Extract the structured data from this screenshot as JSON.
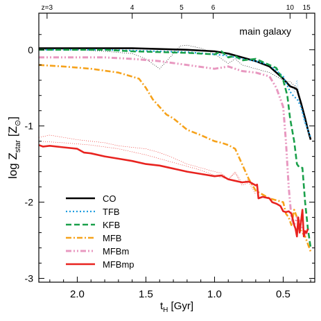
{
  "chart_data": {
    "type": "line",
    "annotation": "main galaxy",
    "xlabel": "t",
    "xlabel_sub": "H",
    "xlabel_unit": " [Gyr]",
    "ylabel": "log Z",
    "ylabel_sub": "star",
    "ylabel_unit_open": " [Z",
    "ylabel_unit_sub": "⊙",
    "ylabel_unit_close": "]",
    "x_reversed": true,
    "xlim": [
      2.28,
      0.27
    ],
    "ylim": [
      -3.05,
      0.48
    ],
    "x_ticks": [
      {
        "v": 2.0,
        "label": "2.0"
      },
      {
        "v": 1.5,
        "label": "1.5"
      },
      {
        "v": 1.0,
        "label": "1.0"
      },
      {
        "v": 0.5,
        "label": "0.5"
      }
    ],
    "y_ticks": [
      {
        "v": 0,
        "label": "0"
      },
      {
        "v": -1,
        "label": "-1"
      },
      {
        "v": -2,
        "label": "-2"
      },
      {
        "v": -3,
        "label": "-3"
      }
    ],
    "top_axis_ticks": [
      {
        "x": 2.22,
        "label": "z=3"
      },
      {
        "x": 1.6,
        "label": "4"
      },
      {
        "x": 1.24,
        "label": "5"
      },
      {
        "x": 1.01,
        "label": "6"
      },
      {
        "x": 0.45,
        "label": "10"
      },
      {
        "x": 0.33,
        "label": "15"
      }
    ],
    "legend_position": "bottom-left",
    "series": [
      {
        "name": "CO",
        "color": "#000000",
        "dash": "solid",
        "width": 2.6,
        "x": [
          2.28,
          2.0,
          1.8,
          1.6,
          1.4,
          1.2,
          1.0,
          0.9,
          0.8,
          0.7,
          0.6,
          0.55,
          0.5,
          0.45,
          0.42,
          0.4,
          0.37,
          0.34,
          0.32,
          0.3
        ],
        "y": [
          0.02,
          0.02,
          0.02,
          0.02,
          0.01,
          0.0,
          -0.02,
          -0.05,
          -0.1,
          -0.15,
          -0.22,
          -0.3,
          -0.38,
          -0.48,
          -0.5,
          -0.52,
          -0.7,
          -0.9,
          -1.05,
          -1.18
        ]
      },
      {
        "name": "TFB",
        "color": "#1e9de0",
        "dash": "dotted",
        "width": 2.2,
        "x": [
          2.28,
          2.0,
          1.8,
          1.6,
          1.4,
          1.2,
          1.0,
          0.9,
          0.8,
          0.7,
          0.6,
          0.5,
          0.45,
          0.42,
          0.4,
          0.37,
          0.34,
          0.32,
          0.3
        ],
        "y": [
          0.0,
          0.0,
          0.0,
          -0.01,
          -0.02,
          -0.03,
          -0.06,
          -0.08,
          -0.12,
          -0.15,
          -0.2,
          -0.35,
          -0.55,
          -0.62,
          -0.64,
          -0.75,
          -0.95,
          -1.05,
          -1.15
        ]
      },
      {
        "name": "KFB",
        "color": "#1aa04a",
        "dash": "dashed",
        "width": 2.6,
        "x": [
          2.28,
          2.0,
          1.8,
          1.6,
          1.4,
          1.2,
          1.0,
          0.95,
          0.9,
          0.85,
          0.8,
          0.7,
          0.6,
          0.55,
          0.5,
          0.47,
          0.45,
          0.42,
          0.4,
          0.38,
          0.36,
          0.34,
          0.32,
          0.3
        ],
        "y": [
          0.0,
          0.0,
          0.0,
          -0.02,
          -0.03,
          -0.04,
          -0.06,
          -0.02,
          -0.1,
          -0.08,
          -0.14,
          -0.12,
          -0.2,
          -0.24,
          -0.4,
          -0.6,
          -0.9,
          -1.2,
          -1.5,
          -1.55,
          -1.55,
          -2.0,
          -2.35,
          -2.6
        ]
      },
      {
        "name": "MFB",
        "color": "#f6a21b",
        "dash": "dashdot",
        "width": 2.6,
        "x": [
          2.28,
          2.1,
          1.9,
          1.7,
          1.55,
          1.5,
          1.45,
          1.4,
          1.35,
          1.3,
          1.2,
          1.1,
          1.0,
          0.95,
          0.9,
          0.85,
          0.8,
          0.75,
          0.7,
          0.6,
          0.5,
          0.48,
          0.46,
          0.44,
          0.42,
          0.4,
          0.38,
          0.36,
          0.34,
          0.32,
          0.3
        ],
        "y": [
          -0.2,
          -0.22,
          -0.25,
          -0.3,
          -0.38,
          -0.5,
          -0.65,
          -0.75,
          -0.85,
          -0.9,
          -1.05,
          -1.12,
          -1.2,
          -1.22,
          -1.25,
          -1.3,
          -1.5,
          -1.7,
          -1.85,
          -1.95,
          -2.0,
          -2.15,
          -2.2,
          -2.3,
          -2.1,
          -2.2,
          -2.35,
          -2.4,
          -2.45,
          -2.55,
          -2.65
        ]
      },
      {
        "name": "MFBm",
        "color": "#e898c0",
        "dash": "dashdotdot",
        "width": 3.0,
        "x": [
          2.28,
          2.0,
          1.8,
          1.6,
          1.4,
          1.2,
          1.0,
          0.9,
          0.8,
          0.7,
          0.6,
          0.55,
          0.5,
          0.48,
          0.46,
          0.44,
          0.42,
          0.4,
          0.38,
          0.36,
          0.34,
          0.32
        ],
        "y": [
          -0.1,
          -0.1,
          -0.1,
          -0.12,
          -0.15,
          -0.2,
          -0.25,
          -0.22,
          -0.28,
          -0.3,
          -0.35,
          -0.5,
          -0.75,
          -1.2,
          -1.8,
          -2.2,
          -2.3,
          -2.2,
          -2.25,
          -2.35,
          -2.4,
          -2.42
        ]
      },
      {
        "name": "MFBmp",
        "color": "#e8231f",
        "dash": "solid",
        "width": 2.6,
        "x": [
          2.28,
          2.25,
          2.2,
          2.1,
          2.0,
          1.95,
          1.9,
          1.8,
          1.7,
          1.6,
          1.5,
          1.4,
          1.3,
          1.2,
          1.1,
          1.0,
          0.95,
          0.9,
          0.85,
          0.8,
          0.75,
          0.7,
          0.69,
          0.68,
          0.65,
          0.6,
          0.58,
          0.55,
          0.52,
          0.5,
          0.48,
          0.46,
          0.44,
          0.42,
          0.41,
          0.4,
          0.39,
          0.38,
          0.37,
          0.36,
          0.35,
          0.34,
          0.33,
          0.32
        ],
        "y": [
          -1.25,
          -1.27,
          -1.26,
          -1.28,
          -1.3,
          -1.35,
          -1.36,
          -1.4,
          -1.43,
          -1.46,
          -1.5,
          -1.52,
          -1.56,
          -1.6,
          -1.63,
          -1.66,
          -1.65,
          -1.7,
          -1.72,
          -1.74,
          -1.73,
          -1.78,
          -1.77,
          -1.95,
          -1.93,
          -1.95,
          -2.0,
          -2.02,
          -2.05,
          -2.12,
          -2.13,
          -2.12,
          -2.15,
          -2.3,
          -2.35,
          -2.45,
          -2.2,
          -2.4,
          -2.25,
          -2.1,
          -2.45,
          -2.38,
          -2.4,
          -2.35
        ]
      }
    ],
    "ghost_series": [
      {
        "color": "#000000",
        "x": [
          2.28,
          2.0,
          1.8,
          1.6,
          1.5,
          1.4,
          1.35,
          1.3,
          1.25,
          1.2,
          1.1,
          1.0,
          0.95,
          0.9,
          0.85,
          0.8,
          0.7,
          0.6,
          0.5,
          0.45,
          0.4
        ],
        "y": [
          0.0,
          0.0,
          -0.02,
          -0.05,
          -0.12,
          -0.25,
          -0.15,
          -0.05,
          0.05,
          0.06,
          0.02,
          -0.05,
          -0.12,
          -0.18,
          -0.12,
          -0.2,
          -0.25,
          -0.3,
          -0.4,
          -0.42,
          -0.5
        ]
      },
      {
        "color": "#e8231f",
        "x": [
          2.28,
          2.2,
          2.1,
          2.0,
          1.9,
          1.8,
          1.7,
          1.6,
          1.5,
          1.4,
          1.3,
          1.2,
          1.1,
          1.0,
          0.95,
          0.9,
          0.85,
          0.8,
          0.75,
          0.7
        ],
        "y": [
          -1.15,
          -1.12,
          -1.15,
          -1.18,
          -1.2,
          -1.22,
          -1.26,
          -1.28,
          -1.3,
          -1.35,
          -1.42,
          -1.5,
          -1.55,
          -1.6,
          -1.62,
          -1.7,
          -1.6,
          -1.75,
          -1.7,
          -1.85
        ]
      },
      {
        "color": "#e8231f",
        "x": [
          2.28,
          2.1,
          1.9,
          1.7,
          1.5,
          1.3,
          1.1,
          1.0,
          0.9,
          0.85,
          0.8,
          0.75,
          0.7
        ],
        "y": [
          -1.2,
          -1.22,
          -1.25,
          -1.3,
          -1.38,
          -1.48,
          -1.58,
          -1.65,
          -1.7,
          -1.62,
          -1.78,
          -1.74,
          -1.9
        ]
      },
      {
        "color": "#1e9de0",
        "x": [
          0.45,
          0.42,
          0.4,
          0.38,
          0.36,
          0.34
        ],
        "y": [
          -0.45,
          -0.55,
          -0.4,
          -0.65,
          -0.85,
          -1.0
        ]
      }
    ]
  }
}
